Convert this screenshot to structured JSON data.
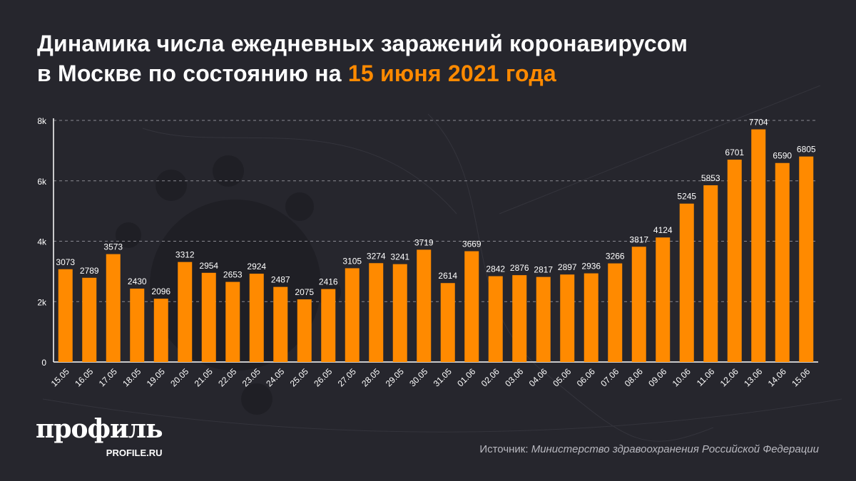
{
  "title": {
    "line1": "Динамика числа ежедневных заражений коронавирусом",
    "line2_prefix": "в Москве по состоянию на ",
    "line2_highlight": "15 июня 2021 года"
  },
  "colors": {
    "background": "#26262d",
    "bar": "#ff8a00",
    "highlight": "#ff8a00"
  },
  "logo": {
    "main": "профиль",
    "sub": "PROFILE.RU"
  },
  "source": {
    "label": "Источник: ",
    "value": "Министерство здравоохранения Российской Федерации"
  },
  "chart_data": {
    "type": "bar",
    "title": "",
    "xlabel": "",
    "ylabel": "",
    "ylim": [
      0,
      8000
    ],
    "yticks": [
      {
        "value": 0,
        "label": "0"
      },
      {
        "value": 2000,
        "label": "2k"
      },
      {
        "value": 4000,
        "label": "4k"
      },
      {
        "value": 6000,
        "label": "6k"
      },
      {
        "value": 8000,
        "label": "8k"
      }
    ],
    "grid": true,
    "categories": [
      "15.05",
      "16.05",
      "17.05",
      "18.05",
      "19.05",
      "20.05",
      "21.05",
      "22.05",
      "23.05",
      "24.05",
      "25.05",
      "26.05",
      "27.05",
      "28.05",
      "29.05",
      "30.05",
      "31.05",
      "01.06",
      "02.06",
      "03.06",
      "04.06",
      "05.06",
      "06.06",
      "07.06",
      "08.06",
      "09.06",
      "10.06",
      "11.06",
      "12.06",
      "13.06",
      "14.06",
      "15.06"
    ],
    "values": [
      3073,
      2789,
      3573,
      2430,
      2096,
      3312,
      2954,
      2653,
      2924,
      2487,
      2075,
      2416,
      3105,
      3274,
      3241,
      3719,
      2614,
      3669,
      2842,
      2876,
      2817,
      2897,
      2936,
      3266,
      3817,
      4124,
      5245,
      5853,
      6701,
      7704,
      6590,
      6805
    ]
  }
}
